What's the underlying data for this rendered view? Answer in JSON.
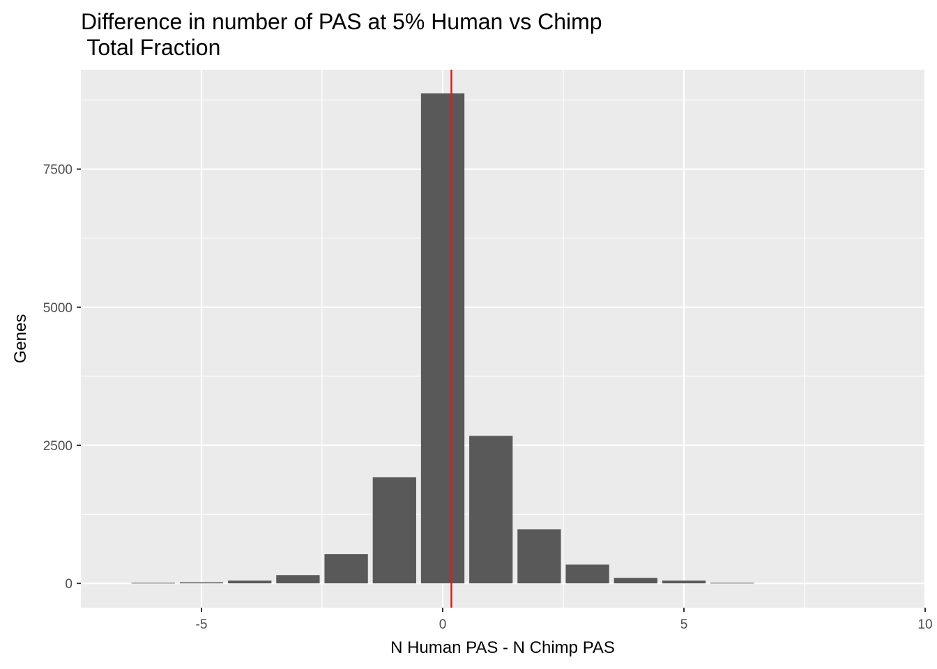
{
  "chart_data": {
    "type": "bar",
    "title_lines": [
      "Difference in number of PAS at 5% Human vs Chimp",
      " Total Fraction"
    ],
    "xlabel": "N Human PAS - N Chimp PAS",
    "ylabel": "Genes",
    "xlim": [
      -7.5,
      10
    ],
    "ylim": [
      -440,
      9300
    ],
    "x_ticks": [
      -5,
      0,
      5,
      10
    ],
    "x_tick_labels": [
      "-5",
      "0",
      "5",
      "10"
    ],
    "y_ticks": [
      0,
      2500,
      5000,
      7500
    ],
    "y_tick_labels": [
      "0",
      "2500",
      "5000",
      "7500"
    ],
    "x": [
      -6,
      -5,
      -4,
      -3,
      -2,
      -1,
      0,
      1,
      2,
      3,
      4,
      5,
      6
    ],
    "values": [
      10,
      20,
      50,
      150,
      530,
      1920,
      8870,
      2670,
      980,
      340,
      100,
      50,
      10
    ],
    "bar_width": 0.9,
    "vline": 0.18,
    "grid": true,
    "colors": {
      "panel": "#ebebeb",
      "grid": "#ffffff",
      "bar": "#595959",
      "vline": "#e31a1c",
      "tick": "#333333"
    }
  }
}
